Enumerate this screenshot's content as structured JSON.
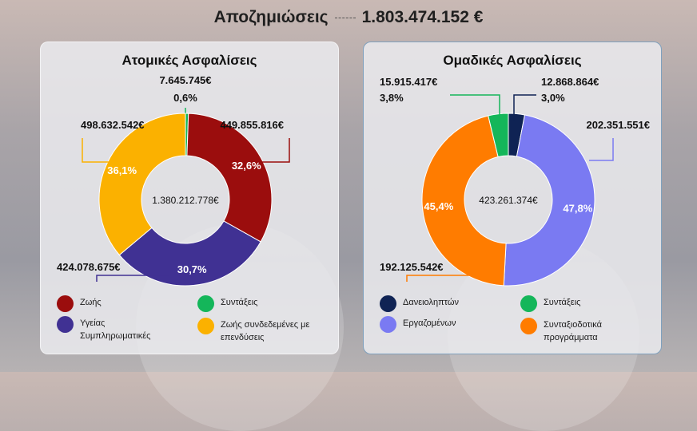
{
  "header": {
    "label": "Αποζημιώσεις",
    "total": "1.803.474.152 €"
  },
  "colors": {
    "life": "#9b0d0d",
    "health": "#403193",
    "pensions": "#14b65a",
    "unit_linked": "#fbb100",
    "borrowers": "#0f2354",
    "employees": "#7a7af2",
    "pension_programs": "#ff7c00"
  },
  "chart_data": [
    {
      "type": "pie",
      "title": "Ατομικές Ασφαλίσεις",
      "center_label": "1.380.212.778€",
      "slices": [
        {
          "key": "pensions",
          "name": "Συντάξεις",
          "value": 7645745,
          "value_label": "7.645.745€",
          "pct_label": "0,6%",
          "color": "#14b65a"
        },
        {
          "key": "life",
          "name": "Ζωής",
          "value": 449855816,
          "value_label": "449.855.816€",
          "pct_label": "32,6%",
          "color": "#9b0d0d"
        },
        {
          "key": "health",
          "name": "Υγείας Συμπληρωματικές",
          "value": 424078675,
          "value_label": "424.078.675€",
          "pct_label": "30,7%",
          "color": "#403193"
        },
        {
          "key": "unit_linked",
          "name": "Ζωής συνδεδεμένες με επενδύσεις",
          "value": 498632542,
          "value_label": "498.632.542€",
          "pct_label": "36,1%",
          "color": "#fbb100"
        }
      ],
      "legend": [
        {
          "label": "Ζωής",
          "color": "#9b0d0d"
        },
        {
          "label": "Συντάξεις",
          "color": "#14b65a"
        },
        {
          "label": "Υγείας\nΣυμπληρωματικές",
          "color": "#403193"
        },
        {
          "label": "Ζωής συνδεδεμένες με\nεπενδύσεις",
          "color": "#fbb100"
        }
      ]
    },
    {
      "type": "pie",
      "title": "Ομαδικές Ασφαλίσεις",
      "center_label": "423.261.374€",
      "slices": [
        {
          "key": "borrowers",
          "name": "Δανειοληπτών",
          "value": 12868864,
          "value_label": "12.868.864€",
          "pct_label": "3,0%",
          "color": "#0f2354"
        },
        {
          "key": "employees",
          "name": "Εργαζομένων",
          "value": 202351551,
          "value_label": "202.351.551€",
          "pct_label": "47,8%",
          "color": "#7a7af2"
        },
        {
          "key": "pension_programs",
          "name": "Συνταξιοδοτικά προγράμματα",
          "value": 192125542,
          "value_label": "192.125.542€",
          "pct_label": "45,4%",
          "color": "#ff7c00"
        },
        {
          "key": "pensions",
          "name": "Συντάξεις",
          "value": 15915417,
          "value_label": "15.915.417€",
          "pct_label": "3,8%",
          "color": "#14b65a"
        }
      ],
      "legend": [
        {
          "label": "Δανειοληπτών",
          "color": "#0f2354"
        },
        {
          "label": "Συντάξεις",
          "color": "#14b65a"
        },
        {
          "label": "Εργαζομένων",
          "color": "#7a7af2"
        },
        {
          "label": "Συνταξιοδοτικά\nπρογράμματα",
          "color": "#ff7c00"
        }
      ]
    }
  ]
}
